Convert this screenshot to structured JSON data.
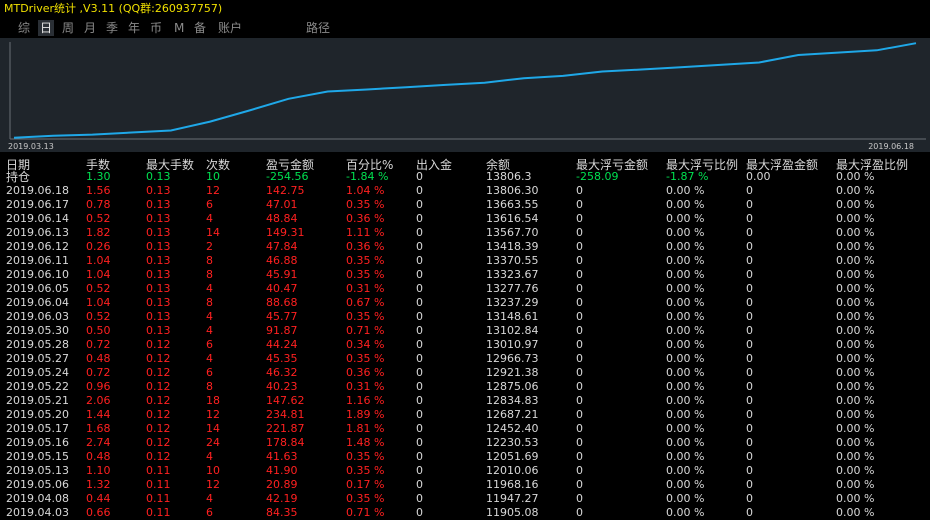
{
  "window": {
    "title": "MTDriver统计 ,V3.11 (QQ群:260937757)"
  },
  "tabs": [
    {
      "label": "综",
      "active": false
    },
    {
      "label": "日",
      "active": true
    },
    {
      "label": "周",
      "active": false
    },
    {
      "label": "月",
      "active": false
    },
    {
      "label": "季",
      "active": false
    },
    {
      "label": "年",
      "active": false
    },
    {
      "label": "币",
      "active": false
    },
    {
      "label": "M",
      "active": false
    },
    {
      "label": "备",
      "active": false
    },
    {
      "label": "账户",
      "active": false
    },
    {
      "label": "路径",
      "active": false
    }
  ],
  "chart_data": {
    "type": "line",
    "x_start_label": "2019.03.13",
    "x_end_label": "2019.06.18",
    "line_color": "#1fa8e8",
    "values": [
      11905.08,
      11947.27,
      11968.16,
      12010.06,
      12051.69,
      12230.53,
      12452.4,
      12687.21,
      12834.83,
      12875.06,
      12921.38,
      12966.73,
      13010.97,
      13102.84,
      13148.61,
      13237.29,
      13277.76,
      13323.67,
      13370.55,
      13418.39,
      13567.7,
      13616.54,
      13663.55,
      13806.3
    ]
  },
  "table": {
    "headers": [
      "日期",
      "手数",
      "最大手数",
      "次数",
      "盈亏金额",
      "百分比%",
      "出入金",
      "余额",
      "最大浮亏金额",
      "最大浮亏比例",
      "最大浮盈金额",
      "最大浮盈比例"
    ],
    "position_row": {
      "label": "持仓",
      "lots": "1.30",
      "max_lots": "0.13",
      "count": "10",
      "pnl": "-254.56",
      "pct": "-1.84 %",
      "inout": "0",
      "balance": "13806.3",
      "max_float_loss": "-258.09",
      "max_float_loss_pct": "-1.87 %",
      "max_float_profit": "0.00",
      "max_float_profit_pct": "0.00 %"
    },
    "rows": [
      [
        "2019.06.18",
        "1.56",
        "0.13",
        "12",
        "142.75",
        "1.04 %",
        "0",
        "13806.30",
        "0",
        "0.00 %",
        "0",
        "0.00 %"
      ],
      [
        "2019.06.17",
        "0.78",
        "0.13",
        "6",
        "47.01",
        "0.35 %",
        "0",
        "13663.55",
        "0",
        "0.00 %",
        "0",
        "0.00 %"
      ],
      [
        "2019.06.14",
        "0.52",
        "0.13",
        "4",
        "48.84",
        "0.36 %",
        "0",
        "13616.54",
        "0",
        "0.00 %",
        "0",
        "0.00 %"
      ],
      [
        "2019.06.13",
        "1.82",
        "0.13",
        "14",
        "149.31",
        "1.11 %",
        "0",
        "13567.70",
        "0",
        "0.00 %",
        "0",
        "0.00 %"
      ],
      [
        "2019.06.12",
        "0.26",
        "0.13",
        "2",
        "47.84",
        "0.36 %",
        "0",
        "13418.39",
        "0",
        "0.00 %",
        "0",
        "0.00 %"
      ],
      [
        "2019.06.11",
        "1.04",
        "0.13",
        "8",
        "46.88",
        "0.35 %",
        "0",
        "13370.55",
        "0",
        "0.00 %",
        "0",
        "0.00 %"
      ],
      [
        "2019.06.10",
        "1.04",
        "0.13",
        "8",
        "45.91",
        "0.35 %",
        "0",
        "13323.67",
        "0",
        "0.00 %",
        "0",
        "0.00 %"
      ],
      [
        "2019.06.05",
        "0.52",
        "0.13",
        "4",
        "40.47",
        "0.31 %",
        "0",
        "13277.76",
        "0",
        "0.00 %",
        "0",
        "0.00 %"
      ],
      [
        "2019.06.04",
        "1.04",
        "0.13",
        "8",
        "88.68",
        "0.67 %",
        "0",
        "13237.29",
        "0",
        "0.00 %",
        "0",
        "0.00 %"
      ],
      [
        "2019.06.03",
        "0.52",
        "0.13",
        "4",
        "45.77",
        "0.35 %",
        "0",
        "13148.61",
        "0",
        "0.00 %",
        "0",
        "0.00 %"
      ],
      [
        "2019.05.30",
        "0.50",
        "0.13",
        "4",
        "91.87",
        "0.71 %",
        "0",
        "13102.84",
        "0",
        "0.00 %",
        "0",
        "0.00 %"
      ],
      [
        "2019.05.28",
        "0.72",
        "0.12",
        "6",
        "44.24",
        "0.34 %",
        "0",
        "13010.97",
        "0",
        "0.00 %",
        "0",
        "0.00 %"
      ],
      [
        "2019.05.27",
        "0.48",
        "0.12",
        "4",
        "45.35",
        "0.35 %",
        "0",
        "12966.73",
        "0",
        "0.00 %",
        "0",
        "0.00 %"
      ],
      [
        "2019.05.24",
        "0.72",
        "0.12",
        "6",
        "46.32",
        "0.36 %",
        "0",
        "12921.38",
        "0",
        "0.00 %",
        "0",
        "0.00 %"
      ],
      [
        "2019.05.22",
        "0.96",
        "0.12",
        "8",
        "40.23",
        "0.31 %",
        "0",
        "12875.06",
        "0",
        "0.00 %",
        "0",
        "0.00 %"
      ],
      [
        "2019.05.21",
        "2.06",
        "0.12",
        "18",
        "147.62",
        "1.16 %",
        "0",
        "12834.83",
        "0",
        "0.00 %",
        "0",
        "0.00 %"
      ],
      [
        "2019.05.20",
        "1.44",
        "0.12",
        "12",
        "234.81",
        "1.89 %",
        "0",
        "12687.21",
        "0",
        "0.00 %",
        "0",
        "0.00 %"
      ],
      [
        "2019.05.17",
        "1.68",
        "0.12",
        "14",
        "221.87",
        "1.81 %",
        "0",
        "12452.40",
        "0",
        "0.00 %",
        "0",
        "0.00 %"
      ],
      [
        "2019.05.16",
        "2.74",
        "0.12",
        "24",
        "178.84",
        "1.48 %",
        "0",
        "12230.53",
        "0",
        "0.00 %",
        "0",
        "0.00 %"
      ],
      [
        "2019.05.15",
        "0.48",
        "0.12",
        "4",
        "41.63",
        "0.35 %",
        "0",
        "12051.69",
        "0",
        "0.00 %",
        "0",
        "0.00 %"
      ],
      [
        "2019.05.13",
        "1.10",
        "0.11",
        "10",
        "41.90",
        "0.35 %",
        "0",
        "12010.06",
        "0",
        "0.00 %",
        "0",
        "0.00 %"
      ],
      [
        "2019.05.06",
        "1.32",
        "0.11",
        "12",
        "20.89",
        "0.17 %",
        "0",
        "11968.16",
        "0",
        "0.00 %",
        "0",
        "0.00 %"
      ],
      [
        "2019.04.08",
        "0.44",
        "0.11",
        "4",
        "42.19",
        "0.35 %",
        "0",
        "11947.27",
        "0",
        "0.00 %",
        "0",
        "0.00 %"
      ],
      [
        "2019.04.03",
        "0.66",
        "0.11",
        "6",
        "84.35",
        "0.71 %",
        "0",
        "11905.08",
        "0",
        "0.00 %",
        "0",
        "0.00 %"
      ]
    ]
  }
}
